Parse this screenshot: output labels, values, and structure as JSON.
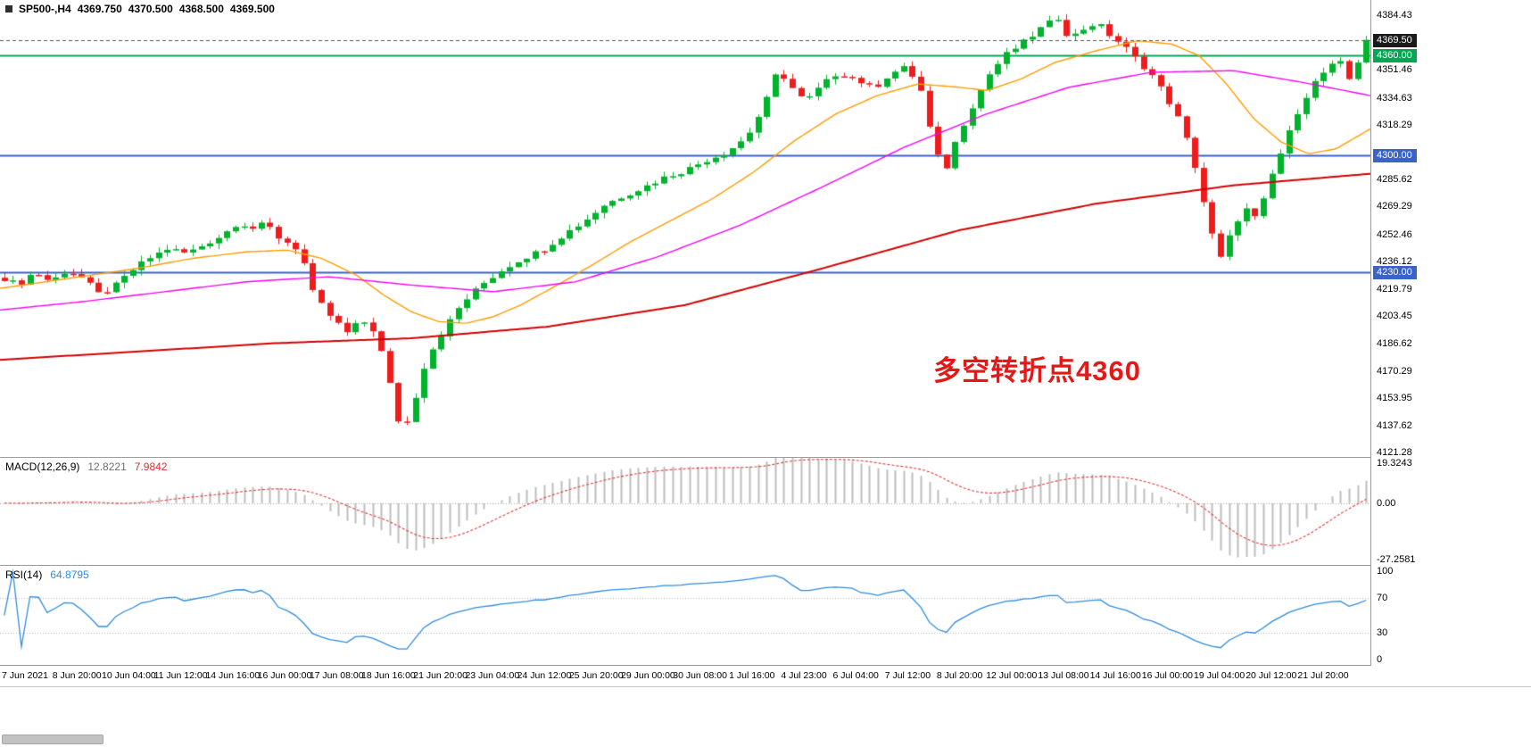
{
  "header": {
    "symbol": "SP500-,H4",
    "open": "4369.750",
    "high": "4370.500",
    "low": "4368.500",
    "close": "4369.500"
  },
  "annotation": {
    "text": "多空转折点4360",
    "color": "#e61717"
  },
  "chart_data": {
    "type": "candlestick",
    "title": "SP500-,H4",
    "bar_count": 160,
    "y_range": [
      4118.6,
      4393.5
    ],
    "up_color": "#00b32c",
    "down_color": "#ef1c1c",
    "noise_amp": 1.6,
    "price_ticks": [
      {
        "text": "4384.43",
        "value": 4384.43
      },
      {
        "text": "4351.46",
        "value": 4351.46
      },
      {
        "text": "4334.63",
        "value": 4334.63
      },
      {
        "text": "4318.29",
        "value": 4318.29
      },
      {
        "text": "4285.62",
        "value": 4285.62
      },
      {
        "text": "4269.29",
        "value": 4269.29
      },
      {
        "text": "4252.46",
        "value": 4252.46
      },
      {
        "text": "4236.12",
        "value": 4236.12
      },
      {
        "text": "4219.79",
        "value": 4219.79
      },
      {
        "text": "4203.45",
        "value": 4203.45
      },
      {
        "text": "4186.62",
        "value": 4186.62
      },
      {
        "text": "4170.29",
        "value": 4170.29
      },
      {
        "text": "4153.95",
        "value": 4153.95
      },
      {
        "text": "4137.62",
        "value": 4137.62
      },
      {
        "text": "4121.28",
        "value": 4121.28
      }
    ],
    "price_tags": [
      {
        "text": "4369.50",
        "value": 4369.5,
        "bg": "#1a1a1a"
      },
      {
        "text": "4360.00",
        "value": 4360.0,
        "bg": "#00a651"
      },
      {
        "text": "4300.00",
        "value": 4300.0,
        "bg": "#3a63c8"
      },
      {
        "text": "4230.00",
        "value": 4230.0,
        "bg": "#3a63c8"
      }
    ],
    "hlines": [
      {
        "value": 4360.0,
        "color": "#00a651",
        "width": 2,
        "dash": null
      },
      {
        "value": 4300.0,
        "color": "#3a63c8",
        "width": 2,
        "dash": null
      },
      {
        "value": 4230.0,
        "color": "#3a63c8",
        "width": 2,
        "dash": null
      },
      {
        "value": 4369.5,
        "color": "#555555",
        "width": 1,
        "dash": [
          4,
          3
        ]
      }
    ],
    "close_path": [
      [
        0.0,
        4226
      ],
      [
        0.01,
        4222
      ],
      [
        0.022,
        4230
      ],
      [
        0.034,
        4224
      ],
      [
        0.046,
        4231
      ],
      [
        0.058,
        4226
      ],
      [
        0.07,
        4216
      ],
      [
        0.082,
        4222
      ],
      [
        0.094,
        4231
      ],
      [
        0.106,
        4238
      ],
      [
        0.12,
        4244
      ],
      [
        0.134,
        4241
      ],
      [
        0.148,
        4247
      ],
      [
        0.16,
        4252
      ],
      [
        0.172,
        4260
      ],
      [
        0.182,
        4256
      ],
      [
        0.192,
        4259
      ],
      [
        0.202,
        4250
      ],
      [
        0.212,
        4246
      ],
      [
        0.218,
        4241
      ],
      [
        0.226,
        4218
      ],
      [
        0.236,
        4206
      ],
      [
        0.252,
        4193
      ],
      [
        0.262,
        4201
      ],
      [
        0.27,
        4196
      ],
      [
        0.276,
        4184
      ],
      [
        0.285,
        4156
      ],
      [
        0.292,
        4131
      ],
      [
        0.3,
        4150
      ],
      [
        0.31,
        4178
      ],
      [
        0.325,
        4198
      ],
      [
        0.335,
        4210
      ],
      [
        0.35,
        4222
      ],
      [
        0.365,
        4231
      ],
      [
        0.38,
        4238
      ],
      [
        0.395,
        4243
      ],
      [
        0.41,
        4252
      ],
      [
        0.425,
        4260
      ],
      [
        0.44,
        4270
      ],
      [
        0.455,
        4276
      ],
      [
        0.47,
        4281
      ],
      [
        0.485,
        4287
      ],
      [
        0.5,
        4291
      ],
      [
        0.515,
        4297
      ],
      [
        0.53,
        4302
      ],
      [
        0.545,
        4311
      ],
      [
        0.558,
        4330
      ],
      [
        0.568,
        4352
      ],
      [
        0.578,
        4341
      ],
      [
        0.588,
        4332
      ],
      [
        0.6,
        4342
      ],
      [
        0.612,
        4350
      ],
      [
        0.625,
        4346
      ],
      [
        0.638,
        4340
      ],
      [
        0.65,
        4349
      ],
      [
        0.662,
        4353
      ],
      [
        0.672,
        4342
      ],
      [
        0.682,
        4307
      ],
      [
        0.69,
        4289
      ],
      [
        0.7,
        4312
      ],
      [
        0.712,
        4332
      ],
      [
        0.724,
        4350
      ],
      [
        0.736,
        4361
      ],
      [
        0.75,
        4369
      ],
      [
        0.762,
        4377
      ],
      [
        0.774,
        4383
      ],
      [
        0.782,
        4370
      ],
      [
        0.792,
        4376
      ],
      [
        0.802,
        4380
      ],
      [
        0.812,
        4372
      ],
      [
        0.822,
        4366
      ],
      [
        0.832,
        4357
      ],
      [
        0.842,
        4349
      ],
      [
        0.852,
        4337
      ],
      [
        0.862,
        4322
      ],
      [
        0.872,
        4301
      ],
      [
        0.882,
        4267
      ],
      [
        0.892,
        4236
      ],
      [
        0.9,
        4252
      ],
      [
        0.91,
        4269
      ],
      [
        0.92,
        4261
      ],
      [
        0.93,
        4287
      ],
      [
        0.94,
        4307
      ],
      [
        0.95,
        4327
      ],
      [
        0.96,
        4342
      ],
      [
        0.97,
        4351
      ],
      [
        0.98,
        4357
      ],
      [
        0.988,
        4345
      ],
      [
        1.0,
        4369.5
      ]
    ],
    "moving_averages": [
      {
        "name": "ma-fast",
        "color": "#ff9b00",
        "width": 1.4,
        "points": [
          [
            0,
            4220
          ],
          [
            0.05,
            4226
          ],
          [
            0.1,
            4232
          ],
          [
            0.14,
            4238
          ],
          [
            0.18,
            4242
          ],
          [
            0.21,
            4243
          ],
          [
            0.235,
            4238
          ],
          [
            0.26,
            4228
          ],
          [
            0.28,
            4216
          ],
          [
            0.3,
            4206
          ],
          [
            0.32,
            4200
          ],
          [
            0.34,
            4199
          ],
          [
            0.36,
            4203
          ],
          [
            0.38,
            4210
          ],
          [
            0.4,
            4219
          ],
          [
            0.43,
            4233
          ],
          [
            0.46,
            4248
          ],
          [
            0.49,
            4261
          ],
          [
            0.52,
            4274
          ],
          [
            0.55,
            4290
          ],
          [
            0.58,
            4309
          ],
          [
            0.61,
            4325
          ],
          [
            0.64,
            4336
          ],
          [
            0.67,
            4343
          ],
          [
            0.7,
            4341
          ],
          [
            0.72,
            4339
          ],
          [
            0.745,
            4346
          ],
          [
            0.77,
            4356
          ],
          [
            0.8,
            4363
          ],
          [
            0.83,
            4369
          ],
          [
            0.855,
            4367
          ],
          [
            0.875,
            4360
          ],
          [
            0.895,
            4343
          ],
          [
            0.915,
            4322
          ],
          [
            0.935,
            4308
          ],
          [
            0.955,
            4301
          ],
          [
            0.975,
            4304
          ],
          [
            1.0,
            4316
          ]
        ]
      },
      {
        "name": "ma-mid",
        "color": "#f800f8",
        "width": 1.4,
        "points": [
          [
            0,
            4207
          ],
          [
            0.06,
            4212
          ],
          [
            0.12,
            4218
          ],
          [
            0.18,
            4224
          ],
          [
            0.24,
            4227
          ],
          [
            0.3,
            4222
          ],
          [
            0.36,
            4218
          ],
          [
            0.42,
            4224
          ],
          [
            0.48,
            4239
          ],
          [
            0.54,
            4258
          ],
          [
            0.6,
            4281
          ],
          [
            0.66,
            4305
          ],
          [
            0.72,
            4325
          ],
          [
            0.78,
            4341
          ],
          [
            0.84,
            4350
          ],
          [
            0.9,
            4351
          ],
          [
            0.95,
            4344
          ],
          [
            1.0,
            4336
          ]
        ]
      },
      {
        "name": "ma-slow",
        "color": "#d40000",
        "width": 2,
        "points": [
          [
            0,
            4177
          ],
          [
            0.1,
            4182
          ],
          [
            0.2,
            4187
          ],
          [
            0.3,
            4190
          ],
          [
            0.4,
            4197
          ],
          [
            0.5,
            4210
          ],
          [
            0.6,
            4232
          ],
          [
            0.7,
            4255
          ],
          [
            0.8,
            4271
          ],
          [
            0.9,
            4282
          ],
          [
            1.0,
            4289
          ]
        ]
      }
    ],
    "indicators": {
      "macd": {
        "name": "MACD(12,26,9)",
        "value": "12.8221",
        "signal_value": "7.9842",
        "fast": 12,
        "slow": 26,
        "signal": 9,
        "range": [
          -27.2581,
          19.3243
        ],
        "ticks": [
          {
            "text": "19.3243",
            "value": 19.3243
          },
          {
            "text": "0.00",
            "value": 0
          },
          {
            "text": "-27.2581",
            "value": -27.2581
          }
        ],
        "bar_color": "#bdbdbd",
        "signal_color": "#e03535"
      },
      "rsi": {
        "name": "RSI(14)",
        "value": "64.8795",
        "period": 14,
        "range": [
          0,
          100
        ],
        "ticks": [
          {
            "text": "100",
            "value": 100
          },
          {
            "text": "70",
            "value": 70
          },
          {
            "text": "30",
            "value": 30
          },
          {
            "text": "0",
            "value": 0
          }
        ],
        "levels": [
          70,
          30
        ],
        "color": "#2f8be0"
      }
    },
    "x_labels": [
      "7 Jun 2021",
      "8 Jun 20:00",
      "10 Jun 04:00",
      "11 Jun 12:00",
      "14 Jun 16:00",
      "16 Jun 00:00",
      "17 Jun 08:00",
      "18 Jun 16:00",
      "21 Jun 20:00",
      "23 Jun 04:00",
      "24 Jun 12:00",
      "25 Jun 20:00",
      "29 Jun 00:00",
      "30 Jun 08:00",
      "1 Jul 16:00",
      "4 Jul 23:00",
      "6 Jul 04:00",
      "7 Jul 12:00",
      "8 Jul 20:00",
      "12 Jul 00:00",
      "13 Jul 08:00",
      "14 Jul 16:00",
      "16 Jul 00:00",
      "19 Jul 04:00",
      "20 Jul 12:00",
      "21 Jul 20:00"
    ]
  }
}
